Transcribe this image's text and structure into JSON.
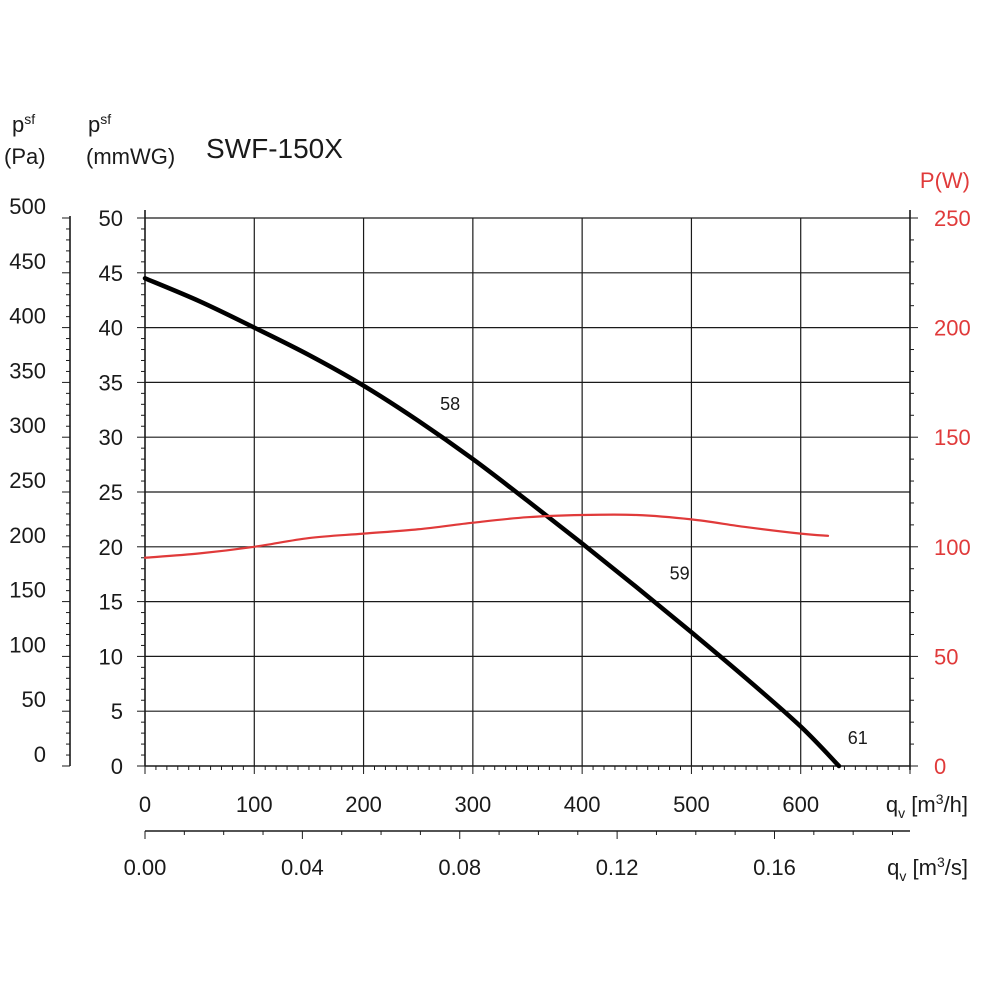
{
  "chart_data": {
    "type": "line",
    "title": "SWF-150X",
    "y_left_outer": {
      "label_main": "p",
      "label_sub": "sf",
      "unit": "(Pa)",
      "ticks": [
        "500",
        "450",
        "400",
        "350",
        "300",
        "250",
        "200",
        "150",
        "100",
        "50",
        "0"
      ],
      "range": [
        0,
        500
      ]
    },
    "y_left_inner": {
      "label_main": "p",
      "label_sub": "sf",
      "unit": "(mmWG)",
      "ticks": [
        "50",
        "45",
        "40",
        "35",
        "30",
        "25",
        "20",
        "15",
        "10",
        "5",
        "0"
      ],
      "range": [
        0,
        50
      ]
    },
    "y_right": {
      "label": "P(W)",
      "ticks": [
        "250",
        "200",
        "150",
        "100",
        "50",
        "0"
      ],
      "range": [
        0,
        250
      ],
      "color": "#e03a3a"
    },
    "x_main": {
      "label_main": "q",
      "label_sub": "v",
      "unit_pre": "[m",
      "unit_sup": "3",
      "unit_post": "/h]",
      "ticks": [
        "0",
        "100",
        "200",
        "300",
        "400",
        "500",
        "600"
      ],
      "range": [
        0,
        700
      ]
    },
    "x_secondary": {
      "label_main": "q",
      "label_sub": "v",
      "unit_pre": "[m",
      "unit_sup": "3",
      "unit_post": "/s]",
      "ticks": [
        "0.00",
        "0.04",
        "0.08",
        "0.12",
        "0.16"
      ],
      "values": [
        0,
        0.04,
        0.08,
        0.12,
        0.16
      ]
    },
    "series": [
      {
        "name": "pressure",
        "axis": "mmWG",
        "color": "#000000",
        "x": [
          0,
          50,
          100,
          150,
          200,
          250,
          300,
          350,
          400,
          450,
          500,
          550,
          600,
          635
        ],
        "y": [
          44.5,
          42.4,
          40.0,
          37.5,
          34.7,
          31.5,
          28.0,
          24.2,
          20.3,
          16.3,
          12.2,
          8.0,
          3.6,
          0
        ]
      },
      {
        "name": "power",
        "axis": "W",
        "color": "#e03a3a",
        "x": [
          0,
          50,
          100,
          150,
          200,
          250,
          300,
          350,
          400,
          450,
          500,
          550,
          600,
          625
        ],
        "y": [
          95,
          97,
          100,
          104,
          106,
          108,
          111,
          113.5,
          114.5,
          114.5,
          112.5,
          109,
          106,
          105
        ]
      }
    ],
    "annotations": [
      {
        "text": "58",
        "x": 270,
        "y": 32.5
      },
      {
        "text": "59",
        "x": 480,
        "y": 17
      },
      {
        "text": "61",
        "x": 643,
        "y": 2
      }
    ],
    "grid": true
  }
}
